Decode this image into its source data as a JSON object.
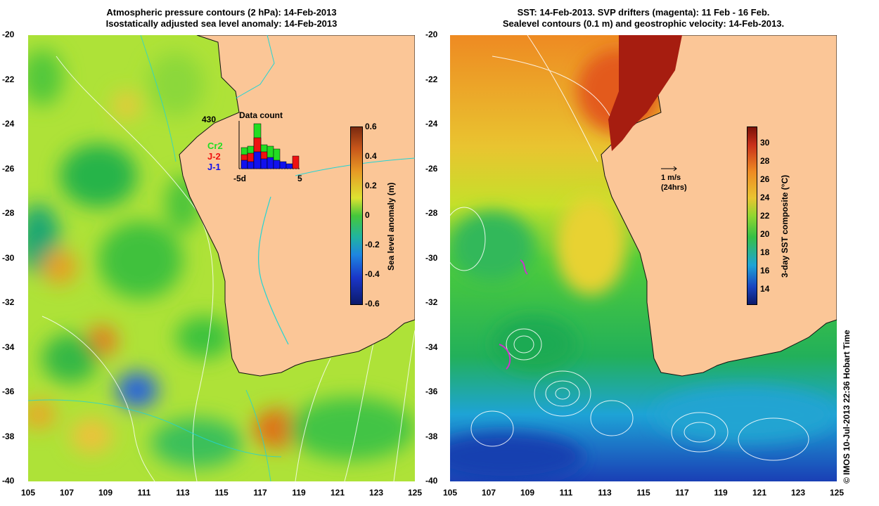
{
  "left_panel": {
    "title_line1": "Atmospheric pressure contours (2 hPa): 14-Feb-2013",
    "title_line2": "Isostatically adjusted sea level anomaly: 14-Feb-2013",
    "inset": {
      "max_label": "430",
      "title": "Data count",
      "x_tick_left": "-5d",
      "x_tick_right": "5",
      "legend": [
        {
          "label": "Cr2",
          "color": "#22dd22"
        },
        {
          "label": "J-2",
          "color": "#ee1111"
        },
        {
          "label": "J-1",
          "color": "#1111ee"
        }
      ]
    },
    "colorbar": {
      "label": "Sea level anomaly (m)",
      "ticks": [
        "0.6",
        "0.4",
        "0.2",
        "0",
        "-0.2",
        "-0.4",
        "-0.6"
      ]
    }
  },
  "right_panel": {
    "title_line1": "SST: 14-Feb-2013. SVP drifters (magenta): 11 Feb - 16 Feb.",
    "title_line2": "Sealevel contours (0.1 m) and geostrophic velocity: 14-Feb-2013.",
    "scale_arrow_line1": "1 m/s",
    "scale_arrow_line2": "(24hrs)",
    "colorbar": {
      "label": "3-day SST composite (°C)",
      "ticks": [
        "30",
        "28",
        "26",
        "24",
        "22",
        "20",
        "18",
        "16",
        "14"
      ]
    }
  },
  "axes": {
    "x_ticks": [
      "105",
      "107",
      "109",
      "111",
      "113",
      "115",
      "117",
      "119",
      "121",
      "123",
      "125"
    ],
    "y_ticks": [
      "-20",
      "-22",
      "-24",
      "-26",
      "-28",
      "-30",
      "-32",
      "-34",
      "-36",
      "-38",
      "-40"
    ]
  },
  "credit": "© IMOS 10-Jul-2013 22:36 Hobart Time",
  "colors": {
    "land": "#fbc697",
    "coast": "#111111",
    "contour_white": "#ffffff",
    "contour_cyan": "#22d4d4"
  }
}
